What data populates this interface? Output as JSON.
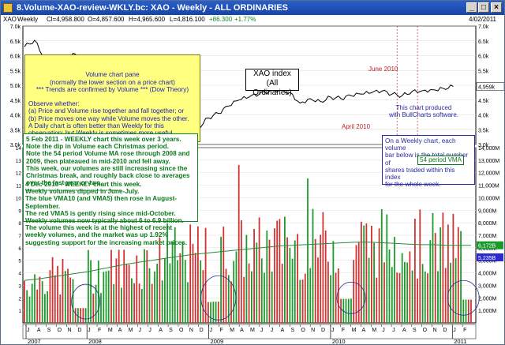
{
  "window": {
    "title": "8.Volume-XAO-review-WKLY.bc: XAO - Weekly - ALL ORDINARIES",
    "date": "4/02/2011"
  },
  "infobar": {
    "symbol": "XAO",
    "period": "Weekly",
    "close": "Cl=4,958.800",
    "open": "O=4,857.600",
    "high": "H=4,965.600",
    "low": "L=4,816.100",
    "change": "+86.300",
    "change_pct": "+1.77%"
  },
  "annotations": {
    "price_pane_title": "Volume chart pane\n(normally the lower section on a price chart)\n*** Trends are confirmed by Volume *** (Dow Theory)",
    "price_pane_body": "\nObserve whether:\n(a) Price and Volume rise together and fall together; or\n(b) Price moves one way while Volume moves the other.\nA Daily chart is often better than Weekly for this\nobservation; but Weekly is sometimes more useful.",
    "xao_label": "XAO index\n(All Ordinaries)",
    "bullcharts_note": "This chart produced\nwith BullCharts software.",
    "event_april": "April 2010",
    "event_june": "June 2010",
    "vol_note_1": "5 Feb 2011 - WEEKLY chart this week over 3 years.\nNote the dip in Volume each Christmas period.\nNote the 54 period Volume MA rose through 2008 and\n2009, then plateaued in mid-2010 and fell away.\nThis week, our volumes are still increasing since the\nChristmas break, and roughly back close to averages\nover the last year or two.\n--------------------------------------------",
    "vol_note_2": "4 Dec 2010 - WEEKLY chart this week.\nWeekly volumes dipped in June-July.\nThe blue VMA10 (and VMA5) then rose in August-\nSeptember.\nThe red VMA5 is gently rising since mid-October.\nWeekly volumes now typically about 6 to 6.9 billion.\nThe volume this week is at the highest of recent\nweekly volumes, and the market was up 1.92%\nsuggesting support for the increasing market prices.",
    "weekly_note": "On a Weekly chart, each volume\nbar below is the total number of\nshares traded within this index\nfor the whole week.",
    "vma_label": "54 period VMA"
  },
  "chart_data": {
    "type": "bar",
    "price_series": {
      "name": "XAO",
      "weeks": [
        0,
        4,
        8,
        12,
        16,
        20,
        24,
        28,
        32,
        36,
        40,
        44,
        48,
        52,
        56,
        60,
        64,
        68,
        72,
        76,
        80,
        84,
        88,
        92,
        96,
        100,
        104,
        108,
        112,
        116,
        120,
        124,
        128,
        132,
        136,
        140,
        144,
        148,
        152,
        156,
        160,
        164,
        168
      ],
      "close": [
        6300,
        6520,
        5900,
        5700,
        5950,
        6050,
        5550,
        5100,
        5400,
        5200,
        4800,
        4300,
        3600,
        3700,
        3500,
        3250,
        3200,
        3550,
        3900,
        4050,
        4300,
        4500,
        4600,
        4700,
        4800,
        4850,
        4750,
        4400,
        4550,
        4450,
        4600,
        4550,
        4650,
        4700,
        4750,
        4800,
        4700,
        4650,
        4800,
        4820,
        4850,
        4900,
        4958.8
      ],
      "ylim": [
        3000,
        7000
      ],
      "yticks": [
        "7.0k",
        "6.5k",
        "6.0k",
        "5.5k",
        "5.0k",
        "4.5k",
        "4.0k",
        "3.5k",
        "3.0k"
      ],
      "last_label": "4,959k"
    },
    "volume_series": {
      "name": "Volume",
      "weeks_count": 176,
      "ylim": [
        0,
        14000
      ],
      "yticks": [
        "14,000M",
        "13,000M",
        "12,000M",
        "11,000M",
        "10,000M",
        "9,000M",
        "8,000M",
        "7,000M",
        "6,000M",
        "5,000M",
        "4,000M",
        "3,000M",
        "2,000M",
        "1,000M"
      ],
      "vma54": [
        3400,
        3500,
        3650,
        3800,
        3950,
        4100,
        4300,
        4500,
        4700,
        4850,
        5000,
        5150,
        5300,
        5450,
        5550,
        5650,
        5750,
        5850,
        5950,
        6050,
        6150,
        6200,
        6250,
        6300,
        6350,
        6400,
        6450,
        6450,
        6400,
        6350,
        6300,
        6250,
        6250,
        6200,
        6200,
        6200
      ],
      "last_vma_label": "6,172B",
      "last_vol_label": "5,235B"
    },
    "x_axis": {
      "month_labels": [
        "J",
        "A",
        "S",
        "O",
        "N",
        "D",
        "J",
        "F",
        "M",
        "A",
        "M",
        "J",
        "J",
        "A",
        "S",
        "O",
        "N",
        "D",
        "J",
        "F",
        "M",
        "A",
        "M",
        "J",
        "J",
        "A",
        "S",
        "O",
        "N",
        "D",
        "J",
        "F",
        "M",
        "A",
        "M",
        "J",
        "J",
        "A",
        "S",
        "O",
        "N",
        "D",
        "J",
        "F"
      ],
      "year_labels": [
        "2007",
        "2008",
        "2009",
        "2010",
        "2011"
      ]
    }
  }
}
